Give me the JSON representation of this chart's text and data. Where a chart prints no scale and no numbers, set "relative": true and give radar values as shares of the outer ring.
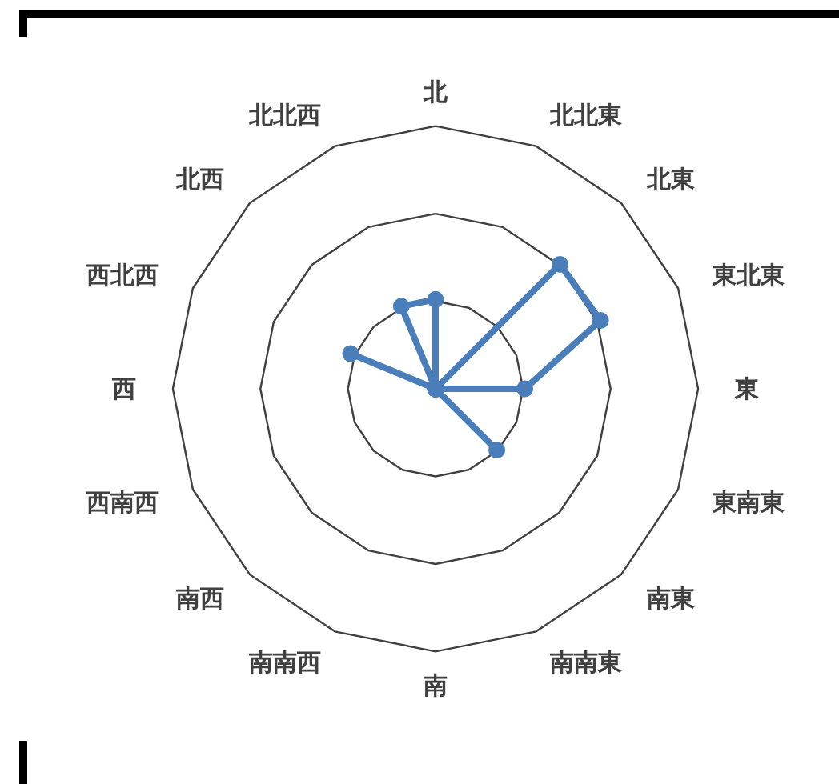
{
  "chart_data": {
    "type": "radar",
    "relative": true,
    "grid": true,
    "marker": "circle",
    "line_style": "solid",
    "categories": [
      "北",
      "北北東",
      "北東",
      "東北東",
      "東",
      "東南東",
      "南東",
      "南南東",
      "南",
      "南南西",
      "南西",
      "西南西",
      "西",
      "西北西",
      "北西",
      "北北西"
    ],
    "series": [
      {
        "color": "#4a7ebb",
        "values": [
          0.34,
          0,
          0.67,
          0.68,
          0.34,
          0,
          0.33,
          0,
          0,
          0,
          0,
          0,
          0,
          0.35,
          0,
          0.34
        ]
      }
    ]
  }
}
